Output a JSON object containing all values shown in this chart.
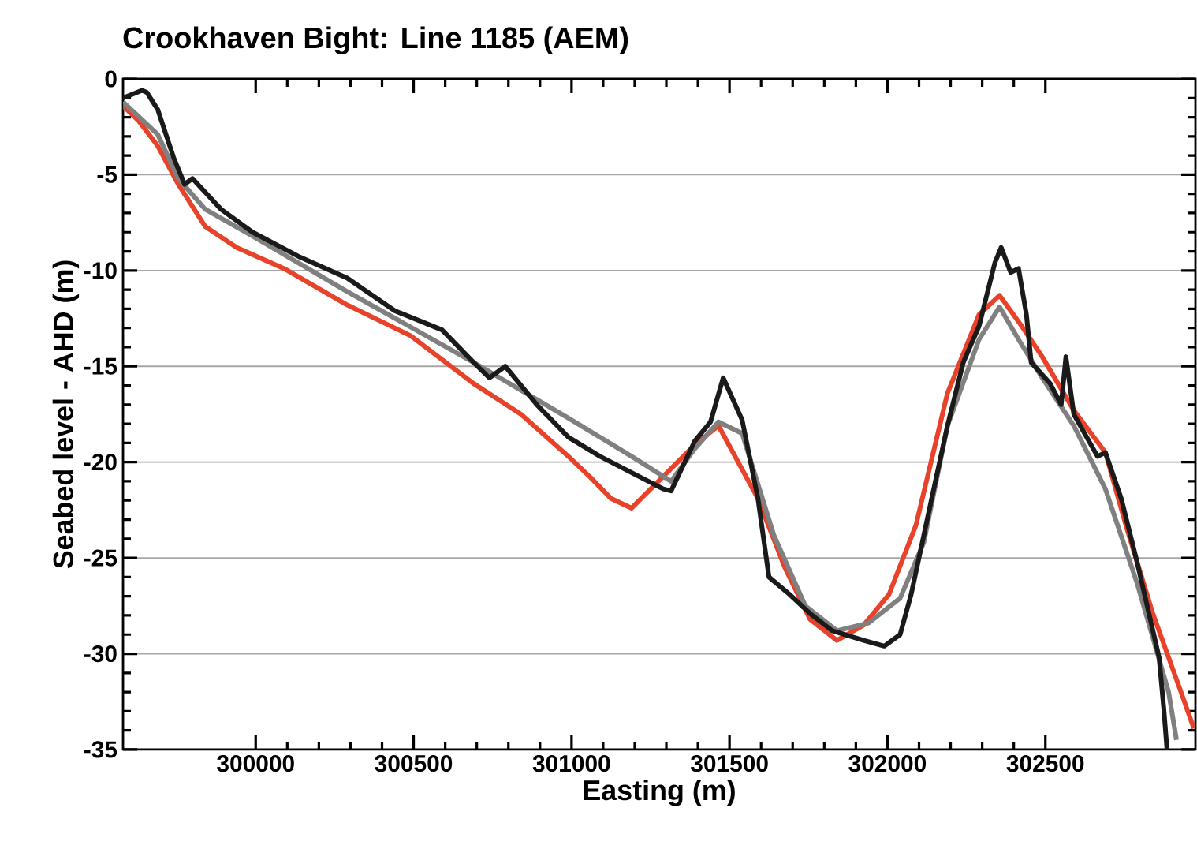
{
  "chart_data": {
    "type": "line",
    "title": "Crookhaven Bight: Line 1185 (AEM)",
    "xlabel": "Easting (m)",
    "ylabel": "Seabed level - AHD (m)",
    "xlim": [
      299580,
      302975
    ],
    "ylim": [
      -35,
      0
    ],
    "xticks": [
      300000,
      300500,
      301000,
      301500,
      302000,
      302500
    ],
    "yticks": [
      -35,
      -30,
      -25,
      -20,
      -15,
      -10,
      -5,
      0
    ],
    "grid": "y",
    "marker": "none",
    "line_style": "solid",
    "series": [
      {
        "color": "#e8432a",
        "x": [
          299580,
          299630,
          299690,
          299755,
          299840,
          299940,
          300090,
          300290,
          300490,
          300690,
          300840,
          300990,
          301060,
          301125,
          301190,
          301390,
          301465,
          301590,
          301675,
          301755,
          301840,
          301925,
          302005,
          302090,
          302190,
          302290,
          302355,
          302425,
          302490,
          302590,
          302690,
          302755,
          302840,
          302925,
          302970
        ],
        "values": [
          -1.4,
          -2.2,
          -3.5,
          -5.5,
          -7.7,
          -8.8,
          -9.9,
          -11.8,
          -13.4,
          -15.9,
          -17.5,
          -19.7,
          -20.8,
          -21.9,
          -22.4,
          -19.1,
          -18.1,
          -21.9,
          -25.5,
          -28.2,
          -29.3,
          -28.5,
          -26.9,
          -23.3,
          -16.4,
          -12.3,
          -11.3,
          -12.9,
          -14.5,
          -17.3,
          -19.5,
          -23.3,
          -27.9,
          -31.8,
          -33.9
        ]
      },
      {
        "color": "#808080",
        "x": [
          299580,
          299690,
          299755,
          299840,
          299990,
          300290,
          300690,
          300990,
          301190,
          301315,
          301390,
          301465,
          301540,
          301640,
          301740,
          301840,
          301940,
          302040,
          302115,
          302190,
          302290,
          302355,
          302415,
          302490,
          302590,
          302690,
          302790,
          302890,
          302915
        ],
        "values": [
          -1.2,
          -2.9,
          -5.2,
          -6.8,
          -8.2,
          -11.1,
          -14.8,
          -17.7,
          -19.7,
          -21.0,
          -19.3,
          -17.9,
          -18.5,
          -23.8,
          -27.5,
          -28.8,
          -28.4,
          -27.1,
          -24.2,
          -18.1,
          -13.6,
          -11.9,
          -13.6,
          -15.6,
          -18.1,
          -21.4,
          -26.3,
          -32.0,
          -34.5
        ]
      },
      {
        "color": "#1a1a1a",
        "x": [
          299580,
          299640,
          299655,
          299690,
          299740,
          299775,
          299800,
          299890,
          299990,
          300140,
          300290,
          300440,
          300590,
          300690,
          300740,
          300790,
          300890,
          300990,
          301090,
          301290,
          301315,
          301390,
          301440,
          301480,
          301540,
          301590,
          301625,
          301690,
          301755,
          301825,
          301925,
          301990,
          302040,
          302075,
          302140,
          302190,
          302240,
          302290,
          302340,
          302360,
          302390,
          302415,
          302440,
          302455,
          302515,
          302550,
          302565,
          302590,
          302665,
          302690,
          302740,
          302790,
          302860,
          302875,
          302885
        ],
        "values": [
          -1.0,
          -0.6,
          -0.7,
          -1.6,
          -4.1,
          -5.5,
          -5.2,
          -6.8,
          -8.0,
          -9.3,
          -10.4,
          -12.1,
          -13.1,
          -14.8,
          -15.6,
          -15.0,
          -17.0,
          -18.7,
          -19.7,
          -21.4,
          -21.5,
          -18.9,
          -17.9,
          -15.6,
          -17.8,
          -21.9,
          -26.0,
          -26.9,
          -27.9,
          -28.8,
          -29.3,
          -29.6,
          -29.0,
          -26.9,
          -21.9,
          -18.1,
          -14.8,
          -12.9,
          -9.6,
          -8.8,
          -10.1,
          -9.9,
          -12.3,
          -14.8,
          -15.9,
          -17.0,
          -14.5,
          -17.5,
          -19.7,
          -19.5,
          -21.9,
          -25.2,
          -30.2,
          -32.9,
          -35.0
        ]
      }
    ]
  }
}
